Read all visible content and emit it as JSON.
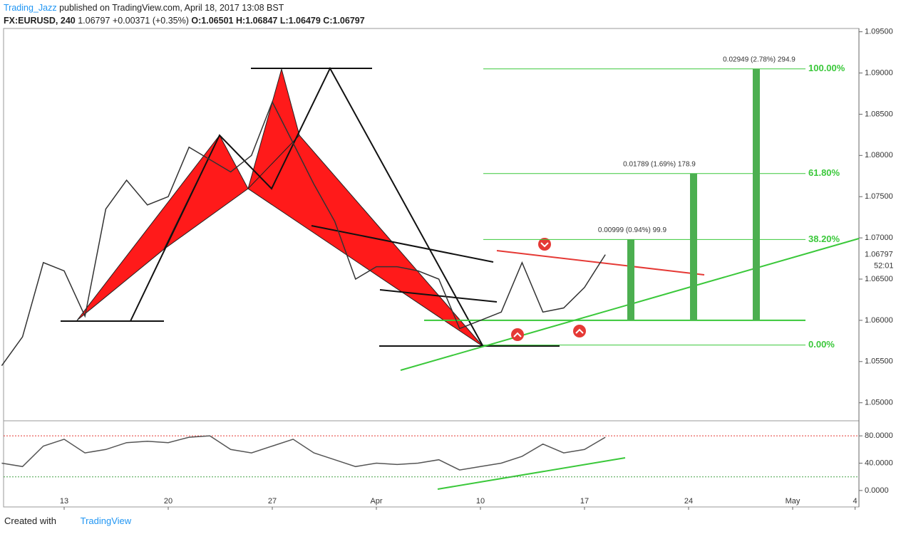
{
  "header": {
    "author": "Trading_Jazz",
    "published": "published on TradingView.com, April 18, 2017 13:08 BST",
    "symbol": "FX:EURUSD, 240",
    "price": "1.06797",
    "change": "+0.00371 (+0.35%)",
    "open": "O:1.06501",
    "high": "H:1.06847",
    "low": "L:1.06479",
    "close": "C:1.06797"
  },
  "footer": {
    "created": "Created with",
    "brand": "TradingView"
  },
  "chart_data": [
    {
      "type": "line",
      "color": "#333333",
      "categories": [
        null,
        null,
        null,
        "13",
        null,
        null,
        null,
        null,
        "20",
        null,
        null,
        null,
        null,
        "27",
        null,
        null,
        null,
        null,
        "Apr",
        null,
        null,
        null,
        null,
        "10",
        null,
        null,
        null,
        null,
        "17",
        null,
        null,
        null,
        null,
        "24",
        null,
        null,
        null,
        null,
        "May",
        null,
        null,
        "4"
      ],
      "values": [
        1.0545,
        1.058,
        1.067,
        1.066,
        1.0605,
        1.0735,
        1.077,
        1.074,
        1.075,
        1.081,
        1.0795,
        1.078,
        1.08,
        1.0865,
        1.0815,
        1.0765,
        1.072,
        1.065,
        1.0665,
        1.0665,
        1.066,
        1.065,
        1.059,
        1.06,
        1.061,
        1.067,
        1.061,
        1.0615,
        1.064,
        1.06797,
        null,
        null,
        null,
        null,
        null,
        null,
        null,
        null,
        null,
        null,
        null,
        null
      ],
      "ylim": [
        1.0479,
        1.0954
      ],
      "yticks": [
        {
          "value": 1.095,
          "label": "1.09500"
        },
        {
          "value": 1.09,
          "label": "1.09000"
        },
        {
          "value": 1.085,
          "label": "1.08500"
        },
        {
          "value": 1.08,
          "label": "1.08000"
        },
        {
          "value": 1.075,
          "label": "1.07500"
        },
        {
          "value": 1.07,
          "label": "1.07000"
        },
        {
          "value": 1.065,
          "label": "1.06500"
        },
        {
          "value": 1.06,
          "label": "1.06000"
        },
        {
          "value": 1.055,
          "label": "1.05500"
        },
        {
          "value": 1.05,
          "label": "1.05000"
        }
      ],
      "last_price": {
        "value": 1.06797,
        "label": "1.06797"
      },
      "countdown": "52:01",
      "baseline": 1.06,
      "fib_levels": [
        {
          "label": "0.00%",
          "value": 1.057
        },
        {
          "label": "38.20%",
          "value": 1.0698,
          "measure": "0.00999 (0.94%) 99.9"
        },
        {
          "label": "61.80%",
          "value": 1.0778,
          "measure": "0.01789 (1.69%) 178.9"
        },
        {
          "label": "100.00%",
          "value": 1.0905,
          "measure": "0.02949 (2.78%) 294.9"
        }
      ]
    },
    {
      "type": "line",
      "color": "#555555",
      "values": [
        40,
        35,
        65,
        75,
        55,
        60,
        70,
        72,
        70,
        78,
        80,
        60,
        55,
        65,
        75,
        55,
        45,
        35,
        40,
        38,
        40,
        45,
        30,
        35,
        40,
        50,
        68,
        55,
        60,
        78
      ],
      "ylim": [
        -22,
        101
      ],
      "yticks": [
        {
          "value": 80,
          "label": "80.0000"
        },
        {
          "value": 40,
          "label": "40.0000"
        },
        {
          "value": 0,
          "label": "0.0000"
        }
      ],
      "ref_lines": [
        {
          "value": 80,
          "color": "#e53935"
        },
        {
          "value": 20,
          "color": "#43a047"
        }
      ]
    }
  ]
}
